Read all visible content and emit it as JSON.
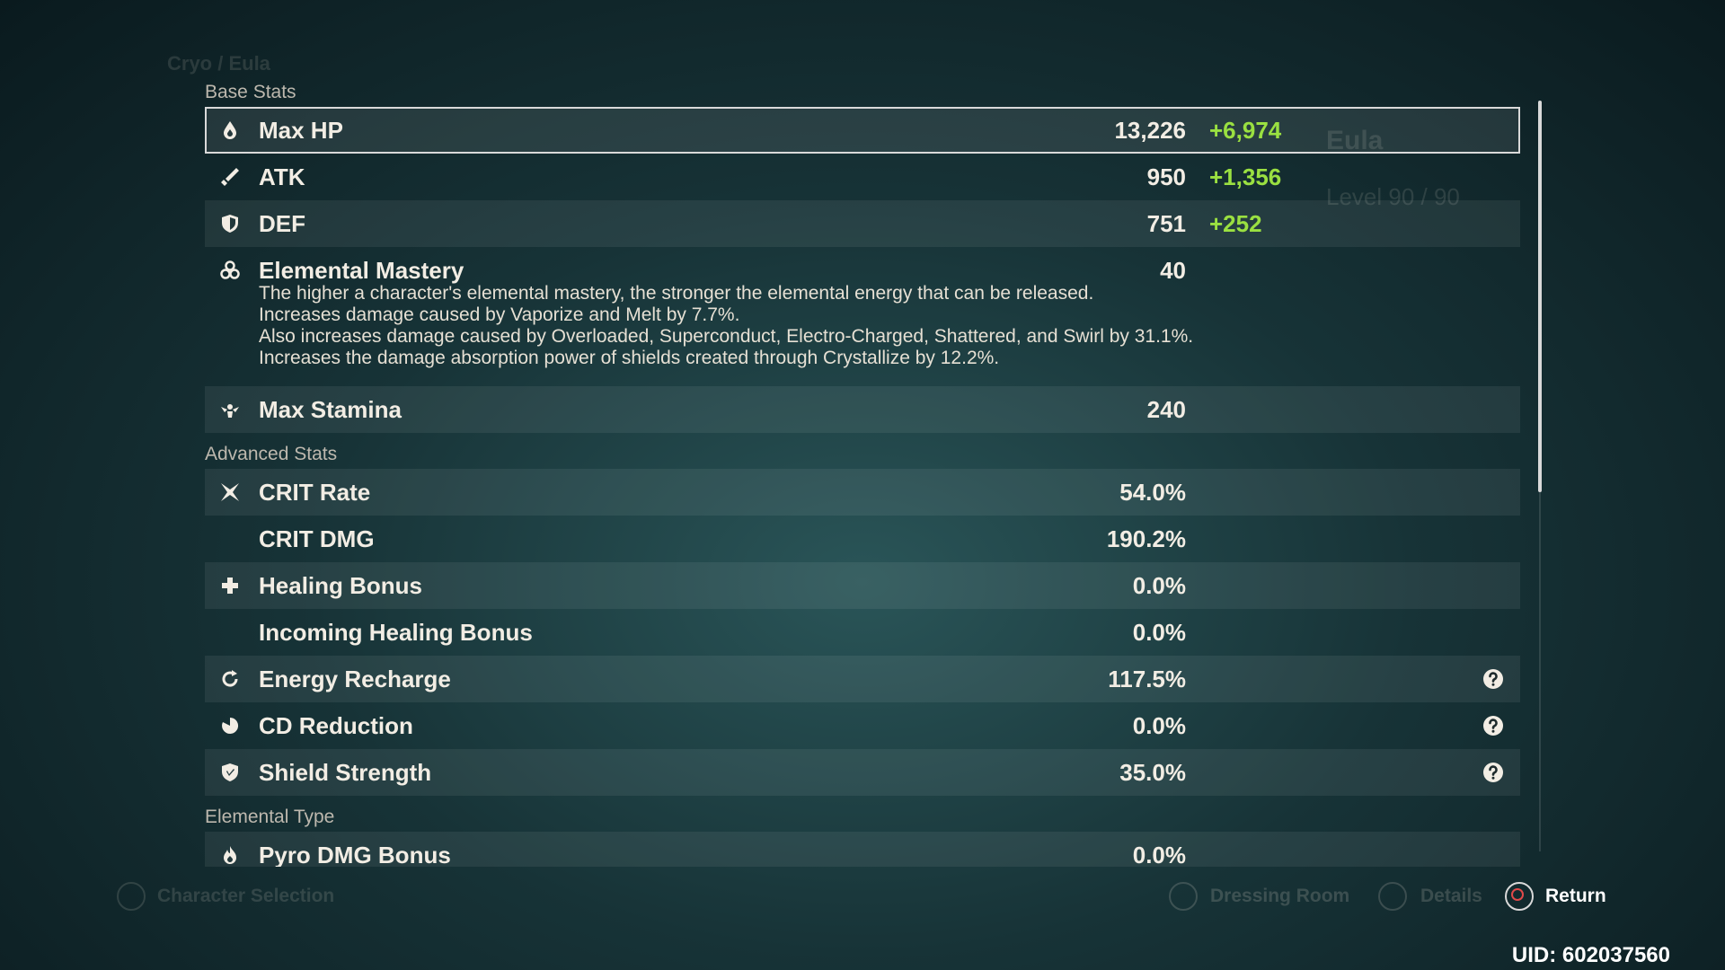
{
  "header": {
    "character": "Cryo / Eula"
  },
  "side_panel": {
    "name": "Eula",
    "level": "Level 90 / 90"
  },
  "stats": {
    "sections": [
      {
        "title": "Base Stats",
        "rows": [
          {
            "name": "Max HP",
            "value": "13,226",
            "bonus": "+6,974",
            "selected": true
          },
          {
            "name": "ATK",
            "value": "950",
            "bonus": "+1,356"
          },
          {
            "name": "DEF",
            "value": "751",
            "bonus": "+252"
          },
          {
            "name": "Elemental Mastery",
            "value": "40",
            "description": [
              "The higher a character's elemental mastery, the stronger the elemental energy that can be released.",
              "Increases damage caused by Vaporize and Melt by 7.7%.",
              "Also increases damage caused by Overloaded, Superconduct, Electro-Charged, Shattered, and Swirl by 31.1%.",
              "Increases the damage absorption power of shields created through Crystallize by 12.2%."
            ]
          },
          {
            "name": "Max Stamina",
            "value": "240"
          }
        ]
      },
      {
        "title": "Advanced Stats",
        "rows": [
          {
            "name": "CRIT Rate",
            "value": "54.0%"
          },
          {
            "name": "CRIT DMG",
            "value": "190.2%"
          },
          {
            "name": "Healing Bonus",
            "value": "0.0%"
          },
          {
            "name": "Incoming Healing Bonus",
            "value": "0.0%"
          },
          {
            "name": "Energy Recharge",
            "value": "117.5%",
            "help": true
          },
          {
            "name": "CD Reduction",
            "value": "0.0%",
            "help": true
          },
          {
            "name": "Shield Strength",
            "value": "35.0%",
            "help": true
          }
        ]
      },
      {
        "title": "Elemental Type",
        "rows": [
          {
            "name": "Pyro DMG Bonus",
            "value": "0.0%"
          }
        ]
      }
    ]
  },
  "footer": {
    "buttons": [
      "Character Selection",
      "Dressing Room",
      "Details",
      "Return"
    ],
    "uid": "UID: 602037560"
  }
}
